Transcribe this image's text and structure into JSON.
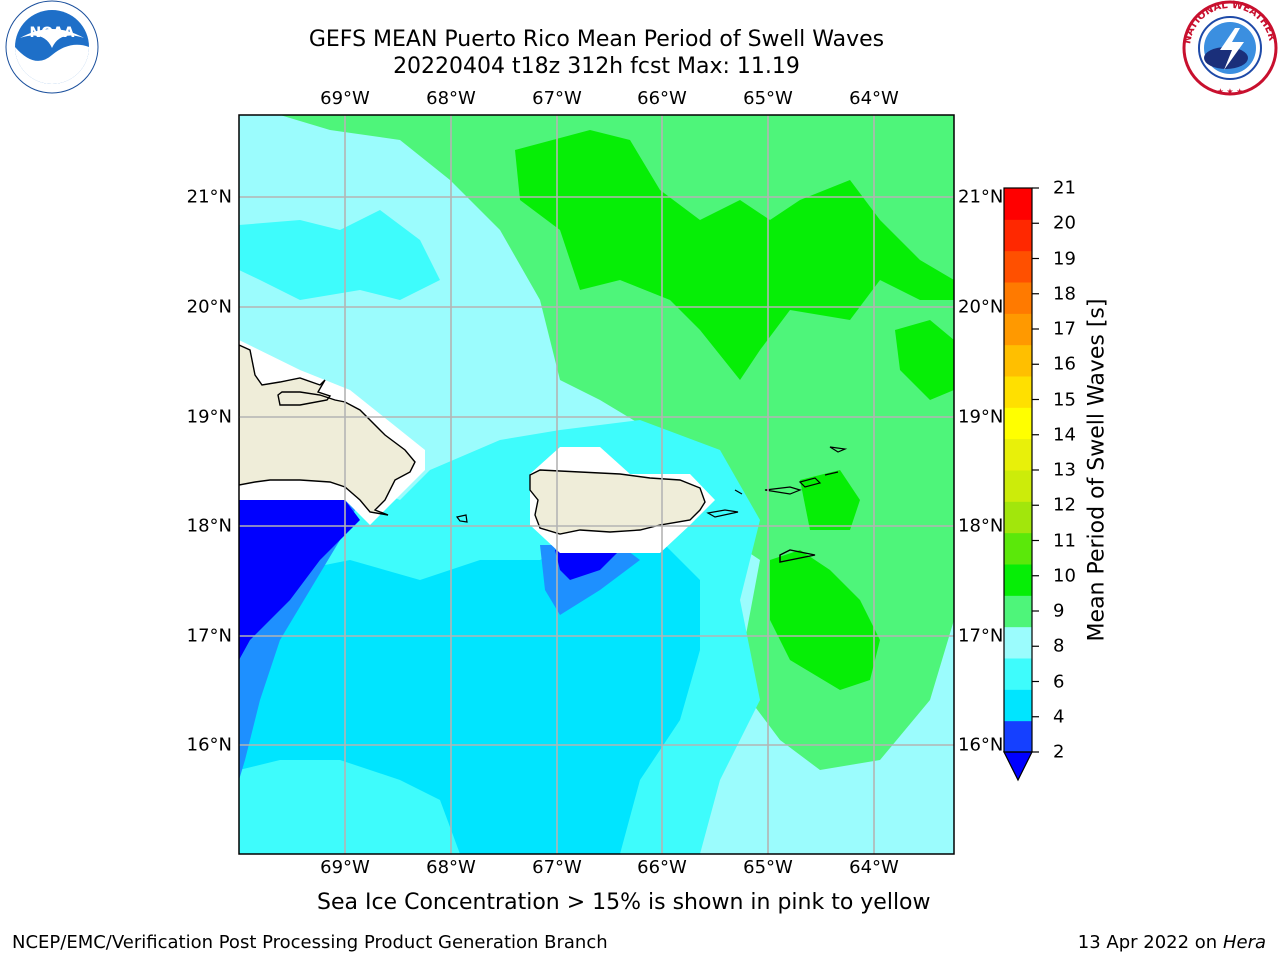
{
  "header": {
    "title_line1": "GEFS MEAN Puerto Rico Mean Period of Swell Waves",
    "title_line2": "20220404 t18z 312h fcst   Max: 11.19"
  },
  "map": {
    "lon_labels": [
      "69°W",
      "68°W",
      "67°W",
      "66°W",
      "65°W",
      "64°W"
    ],
    "lat_labels": [
      "21°N",
      "20°N",
      "19°N",
      "18°N",
      "17°N",
      "16°N"
    ],
    "background_color": "#9bfcfd",
    "land_color": "#efedd9"
  },
  "colorbar": {
    "label": "Mean Period of Swell Waves [s]",
    "ticks": [
      "21",
      "20",
      "19",
      "18",
      "17",
      "16",
      "15",
      "14",
      "13",
      "12",
      "11",
      "10",
      "9",
      "8",
      "6",
      "4",
      "2"
    ],
    "colors_bottom_to_top": [
      "#1540ff",
      "#00e5ff",
      "#3efcfc",
      "#9bfcfd",
      "#4ef57a",
      "#06ee06",
      "#5be80a",
      "#a2e60c",
      "#ccec0a",
      "#e8f00a",
      "#ffff00",
      "#ffe000",
      "#ffbf00",
      "#ff9900",
      "#ff7a00",
      "#ff5000",
      "#ff2800",
      "#ff0000"
    ],
    "under_color": "#0000ff"
  },
  "subtitle": "Sea Ice Concentration > 15% is shown in pink to yellow",
  "footer": {
    "left": "NCEP/EMC/Verification Post Processing Product Generation Branch",
    "right_date": "13 Apr 2022 on ",
    "right_machine": "Hera"
  },
  "logos": {
    "noaa_text": "NOAA",
    "nws_text": "NATIONAL WEATHER SERVICE"
  }
}
